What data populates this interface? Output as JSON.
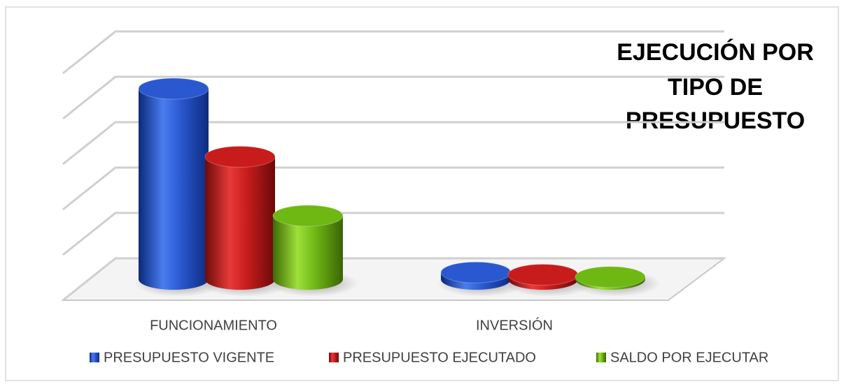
{
  "chart_data": {
    "type": "bar3d",
    "title": [
      "EJECUCIÓN POR",
      "TIPO DE",
      "PRESUPUESTO"
    ],
    "categories": [
      "FUNCIONAMIENTO",
      "INVERSIÓN"
    ],
    "series": [
      {
        "name": "PRESUPUESTO VIGENTE",
        "color": "#2a58d0",
        "values": [
          4.2,
          0.15
        ]
      },
      {
        "name": "PRESUPUESTO EJECUTADO",
        "color": "#c81c1c",
        "values": [
          2.7,
          0.1
        ]
      },
      {
        "name": "SALDO POR EJECUTAR",
        "color": "#6fb814",
        "values": [
          1.4,
          0.05
        ]
      }
    ],
    "ylim": [
      0,
      5
    ],
    "yticks": [
      0,
      1,
      2,
      3,
      4,
      5
    ],
    "grid": true,
    "legend": "bottom"
  }
}
